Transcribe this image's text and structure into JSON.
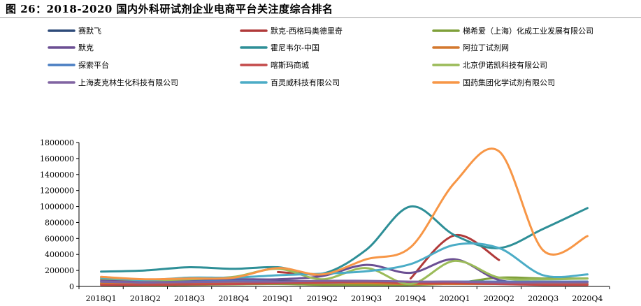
{
  "title": "图 26：2018-2020 国内外科研试剂企业电商平台关注度综合排名",
  "chart_data": {
    "type": "line",
    "title": "图 26：2018-2020 国内外科研试剂企业电商平台关注度综合排名",
    "xlabel": "",
    "ylabel": "",
    "categories": [
      "2018Q1",
      "2018Q2",
      "2018Q3",
      "2018Q4",
      "2019Q1",
      "2019Q2",
      "2019Q3",
      "2019Q4",
      "2020Q1",
      "2020Q2",
      "2020Q3",
      "2020Q4"
    ],
    "ylim": [
      0,
      1800000
    ],
    "yticks": [
      0,
      200000,
      400000,
      600000,
      800000,
      1000000,
      1200000,
      1400000,
      1600000,
      1800000
    ],
    "ytick_labels": [
      "0",
      "200000",
      "400000",
      "600000",
      "800000",
      "1000000",
      "1200000",
      "1400000",
      "1600000",
      "1800000"
    ],
    "grid": false,
    "legend_position": "top",
    "series": [
      {
        "name": "赛默飞",
        "color": "#2E4B7A",
        "values": [
          40000,
          35000,
          40000,
          60000,
          70000,
          60000,
          50000,
          50000,
          60000,
          40000,
          30000,
          30000
        ]
      },
      {
        "name": "默克-西格玛奥德里奇",
        "color": "#B03A3A",
        "values": [
          null,
          null,
          null,
          null,
          180000,
          140000,
          null,
          100000,
          640000,
          330000,
          null,
          null
        ]
      },
      {
        "name": "梯希爱（上海）化成工业发展有限公司",
        "color": "#7FA03A",
        "values": [
          20000,
          15000,
          20000,
          25000,
          30000,
          20000,
          20000,
          20000,
          40000,
          110000,
          100000,
          100000
        ]
      },
      {
        "name": "默克",
        "color": "#6B4F93",
        "values": [
          80000,
          60000,
          70000,
          90000,
          90000,
          130000,
          270000,
          170000,
          340000,
          80000,
          60000,
          60000
        ]
      },
      {
        "name": "霍尼韦尔-中国",
        "color": "#2E8F97",
        "values": [
          185000,
          200000,
          240000,
          220000,
          240000,
          160000,
          460000,
          1000000,
          640000,
          480000,
          720000,
          980000
        ]
      },
      {
        "name": "阿拉丁试剂网",
        "color": "#D4782E",
        "values": [
          40000,
          30000,
          30000,
          40000,
          50000,
          40000,
          40000,
          30000,
          30000,
          30000,
          30000,
          30000
        ]
      },
      {
        "name": "探索平台",
        "color": "#4A7EC2",
        "values": [
          60000,
          50000,
          60000,
          70000,
          60000,
          50000,
          60000,
          50000,
          60000,
          60000,
          60000,
          60000
        ]
      },
      {
        "name": "喀斯玛商城",
        "color": "#C44A4A",
        "values": [
          20000,
          20000,
          25000,
          30000,
          40000,
          50000,
          60000,
          40000,
          40000,
          30000,
          20000,
          20000
        ]
      },
      {
        "name": "北京伊诺凯科技有限公司",
        "color": "#9BBB59",
        "values": [
          100000,
          80000,
          90000,
          120000,
          220000,
          90000,
          230000,
          30000,
          320000,
          110000,
          90000,
          100000
        ]
      },
      {
        "name": "上海麦克林生化科技有限公司",
        "color": "#8064A2",
        "values": [
          60000,
          50000,
          55000,
          60000,
          60000,
          70000,
          70000,
          60000,
          60000,
          50000,
          50000,
          50000
        ]
      },
      {
        "name": "百灵威科技有限公司",
        "color": "#4BACC6",
        "values": [
          110000,
          80000,
          110000,
          110000,
          140000,
          160000,
          190000,
          280000,
          520000,
          480000,
          140000,
          150000
        ]
      },
      {
        "name": "国药集团化学试剂有限公司",
        "color": "#F79646",
        "values": [
          120000,
          90000,
          100000,
          110000,
          230000,
          150000,
          340000,
          490000,
          1300000,
          1690000,
          450000,
          630000
        ]
      }
    ]
  }
}
